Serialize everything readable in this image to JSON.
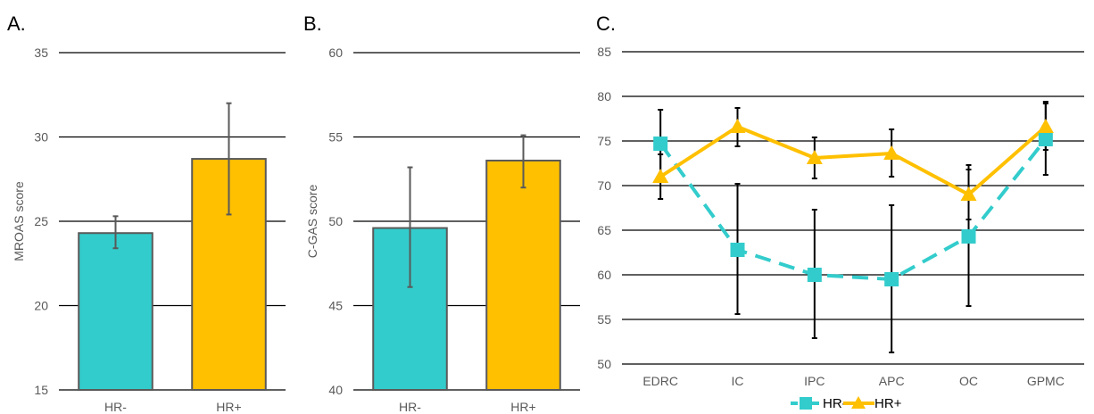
{
  "colors": {
    "hr_minus": "#33CCCC",
    "hr_plus": "#FFC000",
    "grid": "#000000",
    "bar_edge": "#595959",
    "error": "#595959",
    "error_c": "#000000"
  },
  "chart_data": [
    {
      "panel": "A.",
      "type": "bar",
      "categories": [
        "HR-",
        "HR+"
      ],
      "values": [
        24.3,
        28.7
      ],
      "errors": [
        [
          23.4,
          25.3
        ],
        [
          25.4,
          32.0
        ]
      ],
      "xlabel": "",
      "ylabel": "MROAS score",
      "ylim": [
        15,
        35
      ],
      "yticks": [
        15,
        20,
        25,
        30,
        35
      ],
      "grid": true
    },
    {
      "panel": "B.",
      "type": "bar",
      "categories": [
        "HR-",
        "HR+"
      ],
      "values": [
        49.6,
        53.6
      ],
      "errors": [
        [
          46.1,
          53.2
        ],
        [
          52.0,
          55.1
        ]
      ],
      "xlabel": "",
      "ylabel": "C-GAS score",
      "ylim": [
        40,
        60
      ],
      "yticks": [
        40,
        45,
        50,
        55,
        60
      ],
      "grid": true
    },
    {
      "panel": "C.",
      "type": "line",
      "categories": [
        "EDRC",
        "IC",
        "IPC",
        "APC",
        "OC",
        "GPMC"
      ],
      "series": [
        {
          "name": "HR-",
          "values": [
            74.7,
            62.8,
            60.0,
            59.5,
            64.3,
            75.2
          ],
          "errors": [
            [
              71.0,
              78.5
            ],
            [
              55.6,
              70.2
            ],
            [
              52.9,
              67.3
            ],
            [
              51.3,
              67.8
            ],
            [
              56.5,
              72.3
            ],
            [
              71.2,
              79.4
            ]
          ]
        },
        {
          "name": "HR+",
          "values": [
            71.0,
            76.6,
            73.1,
            73.6,
            69.0,
            76.6
          ],
          "errors": [
            [
              68.5,
              73.5
            ],
            [
              74.4,
              78.7
            ],
            [
              70.8,
              75.4
            ],
            [
              71.0,
              76.3
            ],
            [
              66.2,
              71.8
            ],
            [
              74.0,
              79.2
            ]
          ]
        }
      ],
      "xlabel": "",
      "ylabel": "",
      "ylim": [
        50,
        85
      ],
      "yticks": [
        50,
        55,
        60,
        65,
        70,
        75,
        80,
        85
      ],
      "grid": true,
      "legend_position": "bottom"
    }
  ]
}
